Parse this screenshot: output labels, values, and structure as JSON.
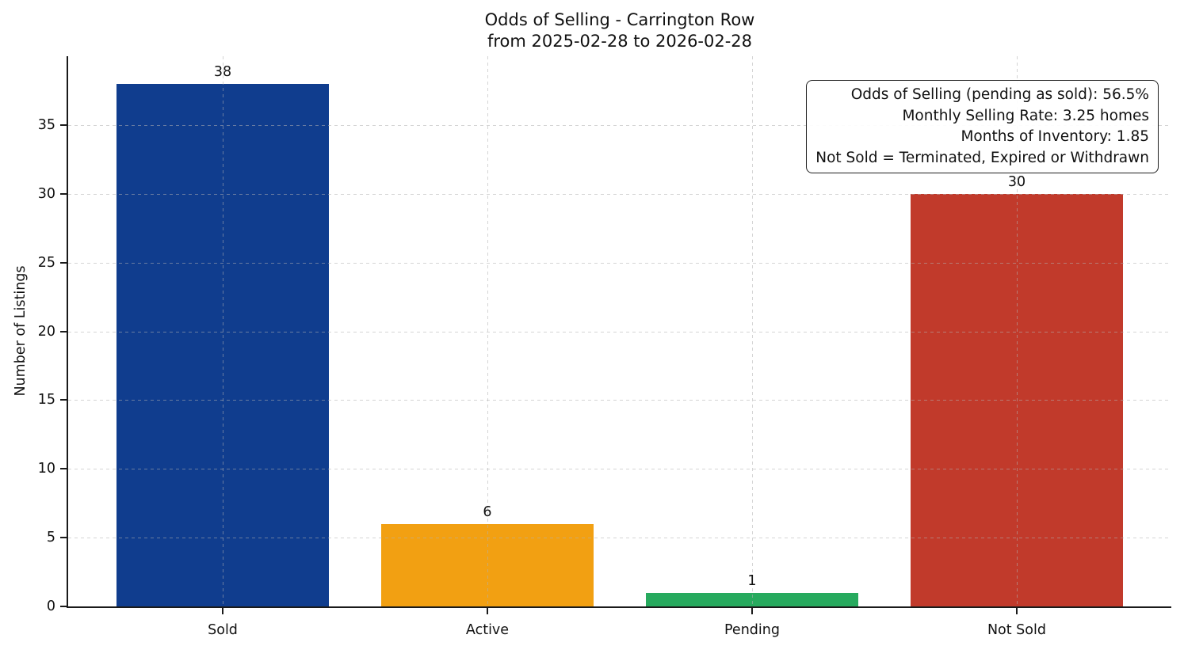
{
  "chart_data": {
    "type": "bar",
    "title": "Odds of Selling - Carrington Row",
    "subtitle": "from 2025-02-28 to 2026-02-28",
    "categories": [
      "Sold",
      "Active",
      "Pending",
      "Not Sold"
    ],
    "values": [
      38,
      6,
      1,
      30
    ],
    "bar_colors": [
      "#103d8e",
      "#f2a012",
      "#27aa5e",
      "#c13a2b"
    ],
    "value_labels": [
      "38",
      "6",
      "1",
      "30"
    ],
    "xlabel": "",
    "ylabel": "Number of Listings",
    "ylim": [
      0,
      40
    ],
    "yticks": [
      0,
      5,
      10,
      15,
      20,
      25,
      30,
      35
    ],
    "grid": "dashed, horizontal at y-ticks and vertical at category centers, drawn above bars",
    "legend": "none",
    "annotation": {
      "lines": [
        "Odds of Selling (pending as sold): 56.5%",
        "Monthly Selling Rate: 3.25 homes",
        "Months of Inventory: 1.85",
        "Not Sold = Terminated, Expired or Withdrawn"
      ],
      "position": "top-right",
      "border_color": "#1f1f1f",
      "background": "#ffffff"
    }
  }
}
